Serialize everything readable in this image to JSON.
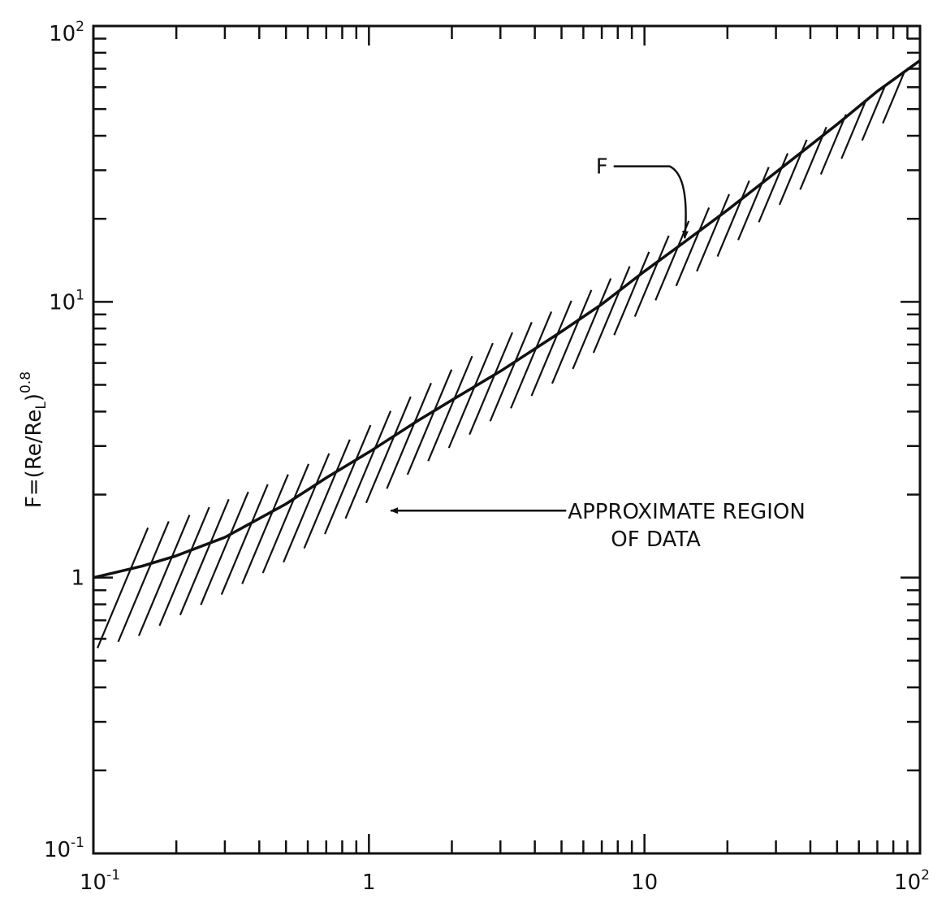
{
  "chart_data": {
    "type": "line",
    "xscale": "log",
    "yscale": "log",
    "xlim": [
      0.1,
      100
    ],
    "ylim": [
      0.1,
      100
    ],
    "grid": false,
    "x_ticks": [
      {
        "value": 0.1,
        "base": "10",
        "exp": "-1"
      },
      {
        "value": 1,
        "base": "1",
        "exp": ""
      },
      {
        "value": 10,
        "base": "10",
        "exp": ""
      },
      {
        "value": 100,
        "base": "10",
        "exp": "2"
      }
    ],
    "y_ticks": [
      {
        "value": 0.1,
        "base": "10",
        "exp": "-1"
      },
      {
        "value": 1,
        "base": "1",
        "exp": ""
      },
      {
        "value": 10,
        "base": "10",
        "exp": "1"
      },
      {
        "value": 100,
        "base": "10",
        "exp": "2"
      }
    ],
    "ylabel": {
      "main": "F=(Re/Re",
      "sub": "L",
      "close": ")",
      "exp": "0.8"
    },
    "xlabel": "",
    "series": [
      {
        "name": "F",
        "x": [
          0.1,
          0.15,
          0.2,
          0.3,
          0.5,
          0.7,
          1,
          1.5,
          2,
          3,
          5,
          7,
          10,
          14,
          20,
          30,
          50,
          70,
          100
        ],
        "y": [
          1.0,
          1.1,
          1.2,
          1.4,
          1.85,
          2.3,
          2.85,
          3.7,
          4.4,
          5.6,
          7.8,
          9.8,
          12.9,
          16.5,
          21.5,
          29.5,
          44,
          58,
          75
        ]
      }
    ],
    "region": {
      "x": [
        0.1,
        0.15,
        0.2,
        0.3,
        0.5,
        0.7,
        1,
        1.5,
        2,
        3,
        5,
        7,
        10,
        14,
        20,
        30,
        50,
        70,
        100
      ],
      "upper": [
        1.5,
        1.7,
        1.9,
        2.2,
        2.85,
        3.6,
        4.6,
        6.0,
        7.2,
        8.8,
        11.5,
        14.0,
        18.5,
        23.0,
        29.0,
        38,
        52,
        66,
        80
      ],
      "lower": [
        0.55,
        0.62,
        0.72,
        0.88,
        1.15,
        1.45,
        1.9,
        2.5,
        3.0,
        3.9,
        5.3,
        6.9,
        9.5,
        12.0,
        15.5,
        22,
        32,
        43,
        55
      ]
    },
    "annotations": [
      {
        "text": "F",
        "at": [
          8.5,
          31
        ],
        "arrow_to": [
          14,
          17
        ]
      },
      {
        "text": "APPROXIMATE REGION",
        "line2": "OF DATA",
        "at": [
          5.2,
          1.75
        ],
        "arrow_to": [
          1.2,
          1.75
        ]
      }
    ]
  }
}
